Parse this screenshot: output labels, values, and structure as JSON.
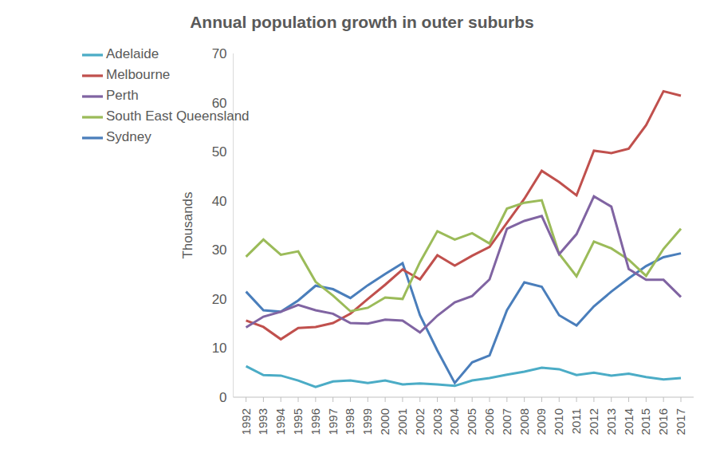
{
  "chart_data": {
    "type": "line",
    "title": "Annual population growth in outer suburbs",
    "y_label": "Thousands",
    "categories": [
      "1992",
      "1993",
      "1994",
      "1995",
      "1996",
      "1997",
      "1998",
      "1999",
      "2000",
      "2001",
      "2002",
      "2003",
      "2004",
      "2005",
      "2006",
      "2007",
      "2008",
      "2009",
      "2010",
      "2011",
      "2012",
      "2013",
      "2014",
      "2015",
      "2016",
      "2017"
    ],
    "series": [
      {
        "name": "Sydney",
        "color": "#4a7ebb",
        "values": [
          21.5,
          17.7,
          17.4,
          19.7,
          22.7,
          22,
          20.2,
          22.8,
          25.1,
          27.3,
          16.7,
          9.5,
          2.9,
          7.1,
          8.5,
          17.7,
          23.4,
          22.5,
          16.7,
          14.6,
          18.5,
          21.5,
          24.2,
          26.7,
          28.5,
          29.3
        ]
      },
      {
        "name": "Melbourne",
        "color": "#c0504d",
        "values": [
          15.6,
          14.3,
          11.8,
          14.1,
          14.3,
          15.1,
          17,
          20,
          22.9,
          26,
          24,
          28.9,
          26.8,
          28.8,
          30.6,
          35.5,
          40.4,
          46.1,
          43.8,
          41.1,
          50.2,
          49.7,
          50.6,
          55.4,
          62.3,
          61.4
        ]
      },
      {
        "name": "South East Queensland",
        "color": "#9bbb59",
        "values": [
          28.6,
          32.1,
          29,
          29.7,
          23.5,
          20.7,
          17.5,
          18.2,
          20.3,
          20,
          27.5,
          33.8,
          32.1,
          33.4,
          31.3,
          38.4,
          39.6,
          40.1,
          29.2,
          24.6,
          31.7,
          30.3,
          28,
          24.7,
          30.2,
          34.3
        ]
      },
      {
        "name": "Perth",
        "color": "#8064a2",
        "values": [
          14.2,
          16.4,
          17.4,
          18.8,
          17.7,
          17,
          15.1,
          15,
          15.8,
          15.6,
          13.2,
          16.6,
          19.3,
          20.6,
          24,
          34.3,
          35.9,
          36.9,
          29.1,
          33.2,
          40.9,
          38.8,
          26.1,
          23.9,
          23.9,
          20.4
        ]
      },
      {
        "name": "Adelaide",
        "color": "#4bacc6",
        "values": [
          6.3,
          4.5,
          4.4,
          3.4,
          2.1,
          3.2,
          3.4,
          2.9,
          3.4,
          2.6,
          2.8,
          2.6,
          2.3,
          3.4,
          3.9,
          4.6,
          5.2,
          6.0,
          5.7,
          4.5,
          5.0,
          4.4,
          4.8,
          4.1,
          3.6,
          3.9
        ]
      }
    ],
    "ylim": [
      0,
      70
    ],
    "yticks": [
      0,
      10,
      20,
      30,
      40,
      50,
      60,
      70
    ],
    "grid": false,
    "legend": "upper left"
  }
}
